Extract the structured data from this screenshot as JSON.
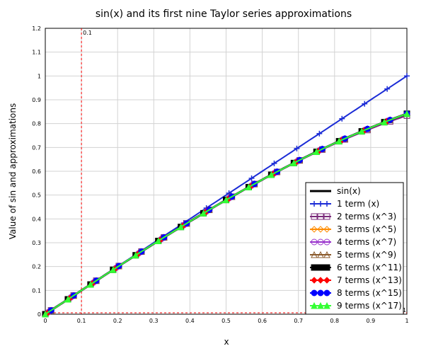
{
  "chart_data": {
    "type": "line",
    "title": "sin(x) and its first nine Taylor series approximations",
    "xlabel": "x",
    "ylabel": "Value of sin and approximations",
    "xlim": [
      0,
      1
    ],
    "ylim": [
      0,
      1.2
    ],
    "xticks": [
      "0",
      "0.1",
      "0.2",
      "0.3",
      "0.4",
      "0.5",
      "0.6",
      "0.7",
      "0.8",
      "0.9",
      "1"
    ],
    "yticks": [
      "0",
      "0.1",
      "0.2",
      "0.3",
      "0.4",
      "0.5",
      "0.6",
      "0.7",
      "0.8",
      "0.9",
      "1",
      "1.1",
      "1.2"
    ],
    "grid": true,
    "legend_position": "bottom-right",
    "annotation": {
      "x": 0.1,
      "label": "0.1"
    },
    "x_extra_label": "1",
    "series": [
      {
        "name": "sin(x)",
        "color": "#000000",
        "marker": "none",
        "terms": 0
      },
      {
        "name": "1 term (x)",
        "color": "#1a2bd6",
        "marker": "plus",
        "terms": 1
      },
      {
        "name": "2 terms (x^3)",
        "color": "#7a2a7a",
        "marker": "square-open",
        "terms": 2
      },
      {
        "name": "3 terms (x^5)",
        "color": "#ff8c00",
        "marker": "diamond-open",
        "terms": 3
      },
      {
        "name": "4 terms (x^7)",
        "color": "#9933cc",
        "marker": "circle-open",
        "terms": 4
      },
      {
        "name": "5 terms (x^9)",
        "color": "#8b5a2b",
        "marker": "triangle-open",
        "terms": 5
      },
      {
        "name": "6 terms (x^11)",
        "color": "#000000",
        "marker": "square",
        "terms": 6
      },
      {
        "name": "7 terms (x^13)",
        "color": "#ff0000",
        "marker": "diamond",
        "terms": 7
      },
      {
        "name": "8 terms (x^15)",
        "color": "#0000ff",
        "marker": "circle",
        "terms": 8
      },
      {
        "name": "9 terms (x^17)",
        "color": "#33ff33",
        "marker": "triangle",
        "terms": 9
      }
    ]
  }
}
